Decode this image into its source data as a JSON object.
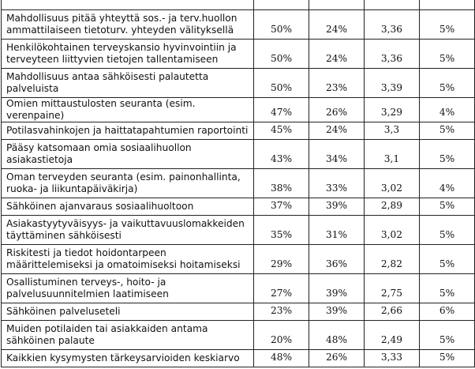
{
  "rows": [
    {
      "label": "",
      "c1": "",
      "c2": "",
      "c3": "",
      "c4": ""
    },
    {
      "label": "Mahdollisuus pitää yhteyttä sos.- ja terv.huollon ammattilaiseen tietoturv. yhteyden välityksellä",
      "c1": "50%",
      "c2": "24%",
      "c3": "3,36",
      "c4": "5%"
    },
    {
      "label": "Henkilökohtainen terveyskansio hyvinvointiin ja terveyteen liittyvien tietojen tallentamiseen",
      "c1": "50%",
      "c2": "24%",
      "c3": "3,36",
      "c4": "5%"
    },
    {
      "label": "Mahdollisuus antaa sähköisesti palautetta palveluista",
      "c1": "50%",
      "c2": "23%",
      "c3": "3,39",
      "c4": "5%"
    },
    {
      "label": "Omien mittaustulosten seuranta (esim. verenpaine)",
      "c1": "47%",
      "c2": "26%",
      "c3": "3,29",
      "c4": "4%"
    },
    {
      "label": "Potilasvahinkojen ja haittatapahtumien raportointi",
      "c1": "45%",
      "c2": "24%",
      "c3": "3,3",
      "c4": "5%"
    },
    {
      "label": "Pääsy katsomaan omia sosiaalihuollon asiakastietoja",
      "c1": "43%",
      "c2": "34%",
      "c3": "3,1",
      "c4": "5%"
    },
    {
      "label": "Oman terveyden seuranta (esim. painonhallinta, ruoka- ja liikuntapäiväkirja)",
      "c1": "38%",
      "c2": "33%",
      "c3": "3,02",
      "c4": "4%"
    },
    {
      "label": "Sähköinen ajanvaraus sosiaalihuoltoon",
      "c1": "37%",
      "c2": "39%",
      "c3": "2,89",
      "c4": "5%"
    },
    {
      "label": "Asiakastyytyväisyys- ja vaikuttavuuslomakkeiden täyttäminen sähköisesti",
      "c1": "35%",
      "c2": "31%",
      "c3": "3,02",
      "c4": "5%"
    },
    {
      "label": "Riskitesti ja tiedot hoidontarpeen määrittelemiseksi ja omatoimiseksi hoitamiseksi",
      "c1": "29%",
      "c2": "36%",
      "c3": "2,82",
      "c4": "5%"
    },
    {
      "label": "Osallistuminen terveys-, hoito- ja palvelusuunnitelmien laatimiseen",
      "c1": "27%",
      "c2": "39%",
      "c3": "2,75",
      "c4": "5%"
    },
    {
      "label": "Sähköinen palveluseteli",
      "c1": "23%",
      "c2": "39%",
      "c3": "2,66",
      "c4": "6%"
    },
    {
      "label": "Muiden potilaiden tai asiakkaiden antama sähköinen palaute",
      "c1": "20%",
      "c2": "48%",
      "c3": "2,49",
      "c4": "5%"
    },
    {
      "label": "Kaikkien kysymysten tärkeysarvioiden keskiarvo",
      "c1": "48%",
      "c2": "26%",
      "c3": "3,33",
      "c4": "5%"
    }
  ]
}
